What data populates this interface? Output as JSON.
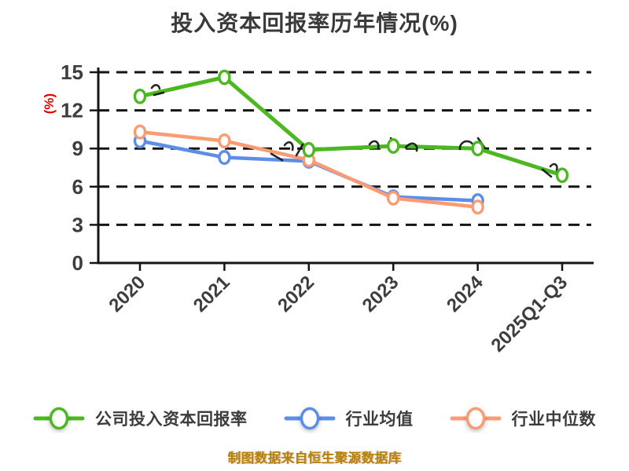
{
  "page": {
    "background": "#ffffff"
  },
  "chart_data": {
    "type": "line",
    "title": "投入资本回报率历年情况(%)",
    "ylabel": "(%)",
    "ylabel_color": "#e60000",
    "footer": "制图数据来自恒生聚源数据库",
    "footer_color": "#b4820f",
    "categories": [
      "2020",
      "2021",
      "2022",
      "2023",
      "2024",
      "2025Q1-Q3"
    ],
    "yticks": [
      0,
      3,
      6,
      9,
      12,
      15
    ],
    "ylim": [
      0,
      15
    ],
    "grid": "horizontal-dashed",
    "legend_position": "bottom",
    "axis_color": "#141414",
    "tick_label_color": "#3d3d3d",
    "marker_style": "white-filled-oval",
    "series": [
      {
        "name": "公司投入资本回报率",
        "color": "#4bb821",
        "values": [
          13.1,
          14.6,
          8.9,
          9.2,
          9.0,
          6.9
        ]
      },
      {
        "name": "行业均值",
        "color": "#5c8de8",
        "values": [
          9.6,
          8.3,
          8.0,
          5.2,
          4.9,
          null
        ]
      },
      {
        "name": "行业中位数",
        "color": "#fa9b72",
        "values": [
          10.3,
          9.6,
          8.1,
          5.1,
          4.4,
          null
        ]
      }
    ]
  }
}
